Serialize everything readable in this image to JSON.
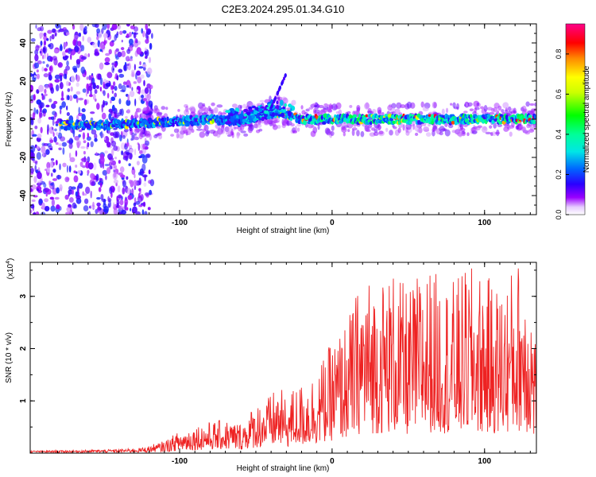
{
  "title": "C2E3.2024.295.01.34.G10",
  "chart_data": [
    {
      "type": "heatmap",
      "xlabel": "Height of straight line (km)",
      "ylabel": "Frequency (Hz)",
      "xlim": [
        -198,
        134
      ],
      "ylim": [
        -50,
        50
      ],
      "xticks": [
        -100,
        0,
        100
      ],
      "yticks": [
        -40,
        -20,
        0,
        20,
        40
      ],
      "colorbar": {
        "label": "Normalized spectral amplitude",
        "range": [
          0,
          0.95
        ],
        "ticks": [
          0.0,
          0.2,
          0.4,
          0.6,
          0.8
        ],
        "tick_labels": [
          "0.0",
          "0.2",
          "0.4",
          "0.6",
          "0.8"
        ],
        "colors": [
          "#ffffff",
          "#9a00ff",
          "#2a00ff",
          "#0066ff",
          "#00e6e6",
          "#00ff33",
          "#ffff00",
          "#ff6600",
          "#ff0000",
          "#ff0080"
        ]
      },
      "band_center_hz": [
        {
          "x": -175,
          "y": -3
        },
        {
          "x": -150,
          "y": -3
        },
        {
          "x": -120,
          "y": -2
        },
        {
          "x": -100,
          "y": -1
        },
        {
          "x": -80,
          "y": 0
        },
        {
          "x": -60,
          "y": -1
        },
        {
          "x": -45,
          "y": 2
        },
        {
          "x": -35,
          "y": 4
        },
        {
          "x": -28,
          "y": 2
        },
        {
          "x": -20,
          "y": 0
        },
        {
          "x": 0,
          "y": 0
        },
        {
          "x": 50,
          "y": 0
        },
        {
          "x": 100,
          "y": 0
        },
        {
          "x": 134,
          "y": 0
        }
      ]
    },
    {
      "type": "line",
      "xlabel": "Height of straight line (km)",
      "ylabel": "SNR (10 * v/v)",
      "scale_label": "(x10^4)",
      "xlim": [
        -198,
        134
      ],
      "ylim": [
        0,
        3.65
      ],
      "xticks": [
        -100,
        0,
        100
      ],
      "yticks": [
        1,
        2,
        3
      ],
      "color": "#ee2222",
      "envelope": {
        "x": [
          -198,
          -170,
          -140,
          -125,
          -110,
          -100,
          -85,
          -70,
          -60,
          -50,
          -40,
          -35,
          -30,
          -25,
          -20,
          -15,
          -10,
          -5,
          0,
          10,
          20,
          30,
          40,
          50,
          60,
          70,
          80,
          90,
          100,
          110,
          120,
          125,
          130,
          134
        ],
        "y": [
          0.04,
          0.05,
          0.07,
          0.1,
          0.22,
          0.4,
          0.55,
          0.6,
          0.55,
          0.9,
          1.05,
          1.25,
          0.95,
          1.2,
          1.25,
          1.35,
          1.55,
          1.75,
          2.0,
          2.4,
          3.2,
          3.1,
          3.3,
          2.9,
          3.4,
          3.2,
          3.1,
          3.35,
          3.2,
          3.0,
          3.4,
          3.6,
          3.05,
          2.0
        ]
      }
    }
  ]
}
